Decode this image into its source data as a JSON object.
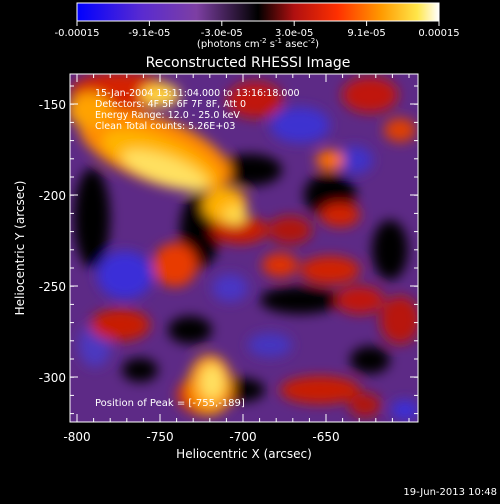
{
  "colorbar": {
    "tick_labels": [
      "-0.00015",
      "-9.1e-05",
      "-3.0e-05",
      "3.0e-05",
      "9.1e-05",
      "0.00015"
    ],
    "units_prefix": "(photons cm",
    "units_exp1": "-2",
    "units_mid": " s",
    "units_exp2": "-1",
    "units_mid2": " asec",
    "units_exp3": "-2",
    "units_suffix": ")",
    "colormap": [
      "#0000ff",
      "#5a2bd0",
      "#7d3fa3",
      "#000000",
      "#b01010",
      "#ff3000",
      "#ff9a00",
      "#ffe64a",
      "#ffffff"
    ]
  },
  "plot": {
    "title": "Reconstructed RHESSI Image",
    "xlabel": "Heliocentric X (arcsec)",
    "ylabel": "Heliocentric Y (arcsec)",
    "x_ticks": [
      "-800",
      "-750",
      "-700",
      "-650"
    ],
    "y_ticks": [
      "-150",
      "-200",
      "-250",
      "-300"
    ],
    "annotations": [
      "15-Jan-2004 13:11:04.000 to 13:16:18.000",
      "Detectors: 4F 5F 6F 7F 8F, Att 0",
      "Energy Range: 12.0 - 25.0 keV",
      "Clean    Total counts: 5.26E+03"
    ],
    "peak_label": "Position of Peak = [-755,-189]"
  },
  "footer": {
    "timestamp": "19-Jun-2013 10:48"
  }
}
